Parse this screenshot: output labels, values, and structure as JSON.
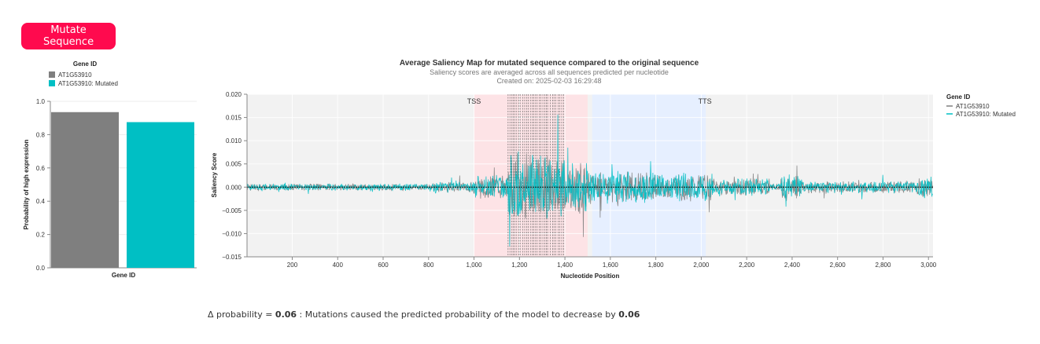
{
  "button": {
    "mutate_label": "Mutate Sequence"
  },
  "colors": {
    "button": "#ff0a4e",
    "original": "#7f7f7f",
    "mutated": "#00bfc4",
    "tss_region": "#fde3e6",
    "tts_region": "#e6efff",
    "plot_bg": "#f2f2f2"
  },
  "delta": {
    "prefix": "Δ probability = ",
    "value": "0.06",
    "middle": " : Mutations caused the predicted probability of the model to decrease by ",
    "value2": "0.06"
  },
  "chart_data": [
    {
      "type": "bar",
      "legend_title": "Gene ID",
      "categories": [
        "AT1G53910",
        "AT1G53910: Mutated"
      ],
      "values": [
        0.935,
        0.875
      ],
      "colors": [
        "#7f7f7f",
        "#00bfc4"
      ],
      "xlabel": "Gene ID",
      "ylabel": "Probability of high expression",
      "ylim": [
        0,
        1.0
      ],
      "yticks": [
        "0.0",
        "0.2",
        "0.4",
        "0.6",
        "0.8",
        "1.0"
      ],
      "legend_placement": "top-left"
    },
    {
      "type": "line",
      "title": "Average Saliency Map for mutated sequence compared to the original sequence",
      "subtitle": "Saliency scores are averaged across all sequences predicted per nucleotide",
      "created": "Created on: 2025-02-03 16:29:48",
      "xlabel": "Nucleotide Position",
      "ylabel": "Saliency Score",
      "xlim": [
        1,
        3020
      ],
      "ylim": [
        -0.015,
        0.02
      ],
      "xticks": [
        "200",
        "400",
        "600",
        "800",
        "1,000",
        "1,200",
        "1,400",
        "1,600",
        "1,800",
        "2,000",
        "2,200",
        "2,400",
        "2,600",
        "2,800",
        "3,000"
      ],
      "yticks": [
        "−0.015",
        "−0.010",
        "−0.005",
        "0.000",
        "0.005",
        "0.010",
        "0.015",
        "0.020"
      ],
      "legend_title": "Gene ID",
      "legend_placement": "right",
      "series": [
        {
          "name": "AT1G53910",
          "color": "#7f7f7f"
        },
        {
          "name": "AT1G53910: Mutated",
          "color": "#00bfc4"
        }
      ],
      "regions": [
        {
          "label": "TSS",
          "start": 1000,
          "end": 1500,
          "color": "#fde3e6"
        },
        {
          "label": "TTS",
          "start": 1520,
          "end": 2020,
          "color": "#e6efff"
        }
      ],
      "mutation_range": [
        1150,
        1395
      ],
      "grid": true
    }
  ]
}
